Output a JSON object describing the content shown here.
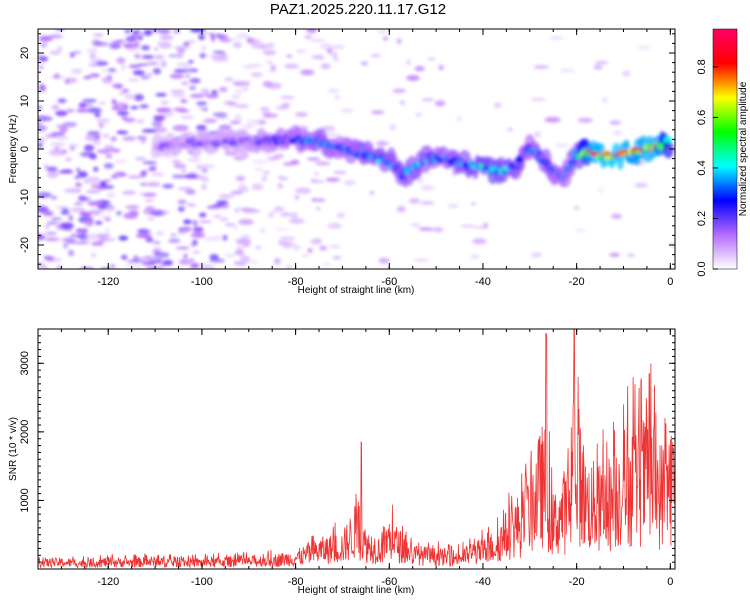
{
  "title": "PAZ1.2025.220.11.17.G12",
  "chart_data": [
    {
      "type": "heatmap",
      "xlabel": "Height of straight line (km)",
      "ylabel": "Frequency (Hz)",
      "xlim": [
        -135,
        1
      ],
      "ylim": [
        -25,
        25
      ],
      "xticks": [
        -120,
        -100,
        -80,
        -60,
        -40,
        -20,
        0
      ],
      "yticks": [
        -20,
        -10,
        0,
        10,
        20
      ],
      "colorbar": {
        "label": "Normalized spectral amplitude",
        "range": [
          0,
          0.95
        ],
        "ticks": [
          "0.0",
          "0.2",
          "0.4",
          "0.6",
          "0.8"
        ],
        "colors": [
          "#ffffff",
          "#b46bff",
          "#0000ff",
          "#00ffff",
          "#00ff00",
          "#ffff00",
          "#ff0000",
          "#ff0066"
        ]
      },
      "ridge": [
        {
          "x": -110,
          "freq": 0.5,
          "amp": 0.15
        },
        {
          "x": -100,
          "freq": 1.5,
          "amp": 0.17
        },
        {
          "x": -90,
          "freq": 1.5,
          "amp": 0.2
        },
        {
          "x": -80,
          "freq": 2.0,
          "amp": 0.3
        },
        {
          "x": -75,
          "freq": 1.5,
          "amp": 0.35
        },
        {
          "x": -70,
          "freq": 0.0,
          "amp": 0.3
        },
        {
          "x": -65,
          "freq": -1.0,
          "amp": 0.35
        },
        {
          "x": -60,
          "freq": -2.5,
          "amp": 0.35
        },
        {
          "x": -57,
          "freq": -5.5,
          "amp": 0.35
        },
        {
          "x": -52,
          "freq": -2.0,
          "amp": 0.35
        },
        {
          "x": -48,
          "freq": -2.0,
          "amp": 0.32
        },
        {
          "x": -43,
          "freq": -3.5,
          "amp": 0.38
        },
        {
          "x": -37,
          "freq": -4.5,
          "amp": 0.42
        },
        {
          "x": -33,
          "freq": -4.0,
          "amp": 0.35
        },
        {
          "x": -30,
          "freq": 0.5,
          "amp": 0.3
        },
        {
          "x": -27,
          "freq": -2.5,
          "amp": 0.35
        },
        {
          "x": -23,
          "freq": -6.0,
          "amp": 0.3
        },
        {
          "x": -20,
          "freq": -1.0,
          "amp": 0.35
        },
        {
          "x": -17,
          "freq": -1.0,
          "amp": 0.8
        },
        {
          "x": -12,
          "freq": -1.5,
          "amp": 0.85
        },
        {
          "x": -8,
          "freq": -0.5,
          "amp": 0.78
        },
        {
          "x": -3,
          "freq": 0.5,
          "amp": 0.82
        },
        {
          "x": 0,
          "freq": 1.5,
          "amp": 0.5
        }
      ]
    },
    {
      "type": "line",
      "xlabel": "Height of straight line (km)",
      "ylabel": "SNR (10 * v/v)",
      "xlim": [
        -135,
        1
      ],
      "ylim": [
        0,
        3500
      ],
      "xticks": [
        -120,
        -100,
        -80,
        -60,
        -40,
        -20,
        0
      ],
      "yticks": [
        1000,
        2000,
        3000
      ],
      "series": [
        {
          "color": "#ee3333",
          "x": [
            -135,
            -130,
            -125,
            -120,
            -115,
            -110,
            -105,
            -100,
            -95,
            -90,
            -85,
            -80,
            -75,
            -70,
            -67,
            -65,
            -62,
            -60,
            -58,
            -55,
            -50,
            -45,
            -42,
            -40,
            -37,
            -34,
            -31,
            -29,
            -27,
            -25,
            -23,
            -21,
            -20,
            -18,
            -15,
            -12,
            -10,
            -7,
            -4,
            -2,
            0,
            1
          ],
          "y": [
            140,
            150,
            130,
            160,
            150,
            170,
            150,
            150,
            170,
            170,
            200,
            250,
            420,
            500,
            900,
            550,
            450,
            700,
            550,
            330,
            280,
            260,
            380,
            400,
            550,
            900,
            1100,
            1600,
            2000,
            1000,
            1300,
            1500,
            2400,
            1500,
            1400,
            1600,
            1900,
            2000,
            2100,
            1700,
            2000,
            1900
          ]
        }
      ],
      "peaks": [
        {
          "x": -66,
          "y": 1850
        },
        {
          "x": -26.5,
          "y": 3430
        },
        {
          "x": -20.5,
          "y": 3500
        },
        {
          "x": -4.5,
          "y": 2850
        }
      ]
    }
  ]
}
